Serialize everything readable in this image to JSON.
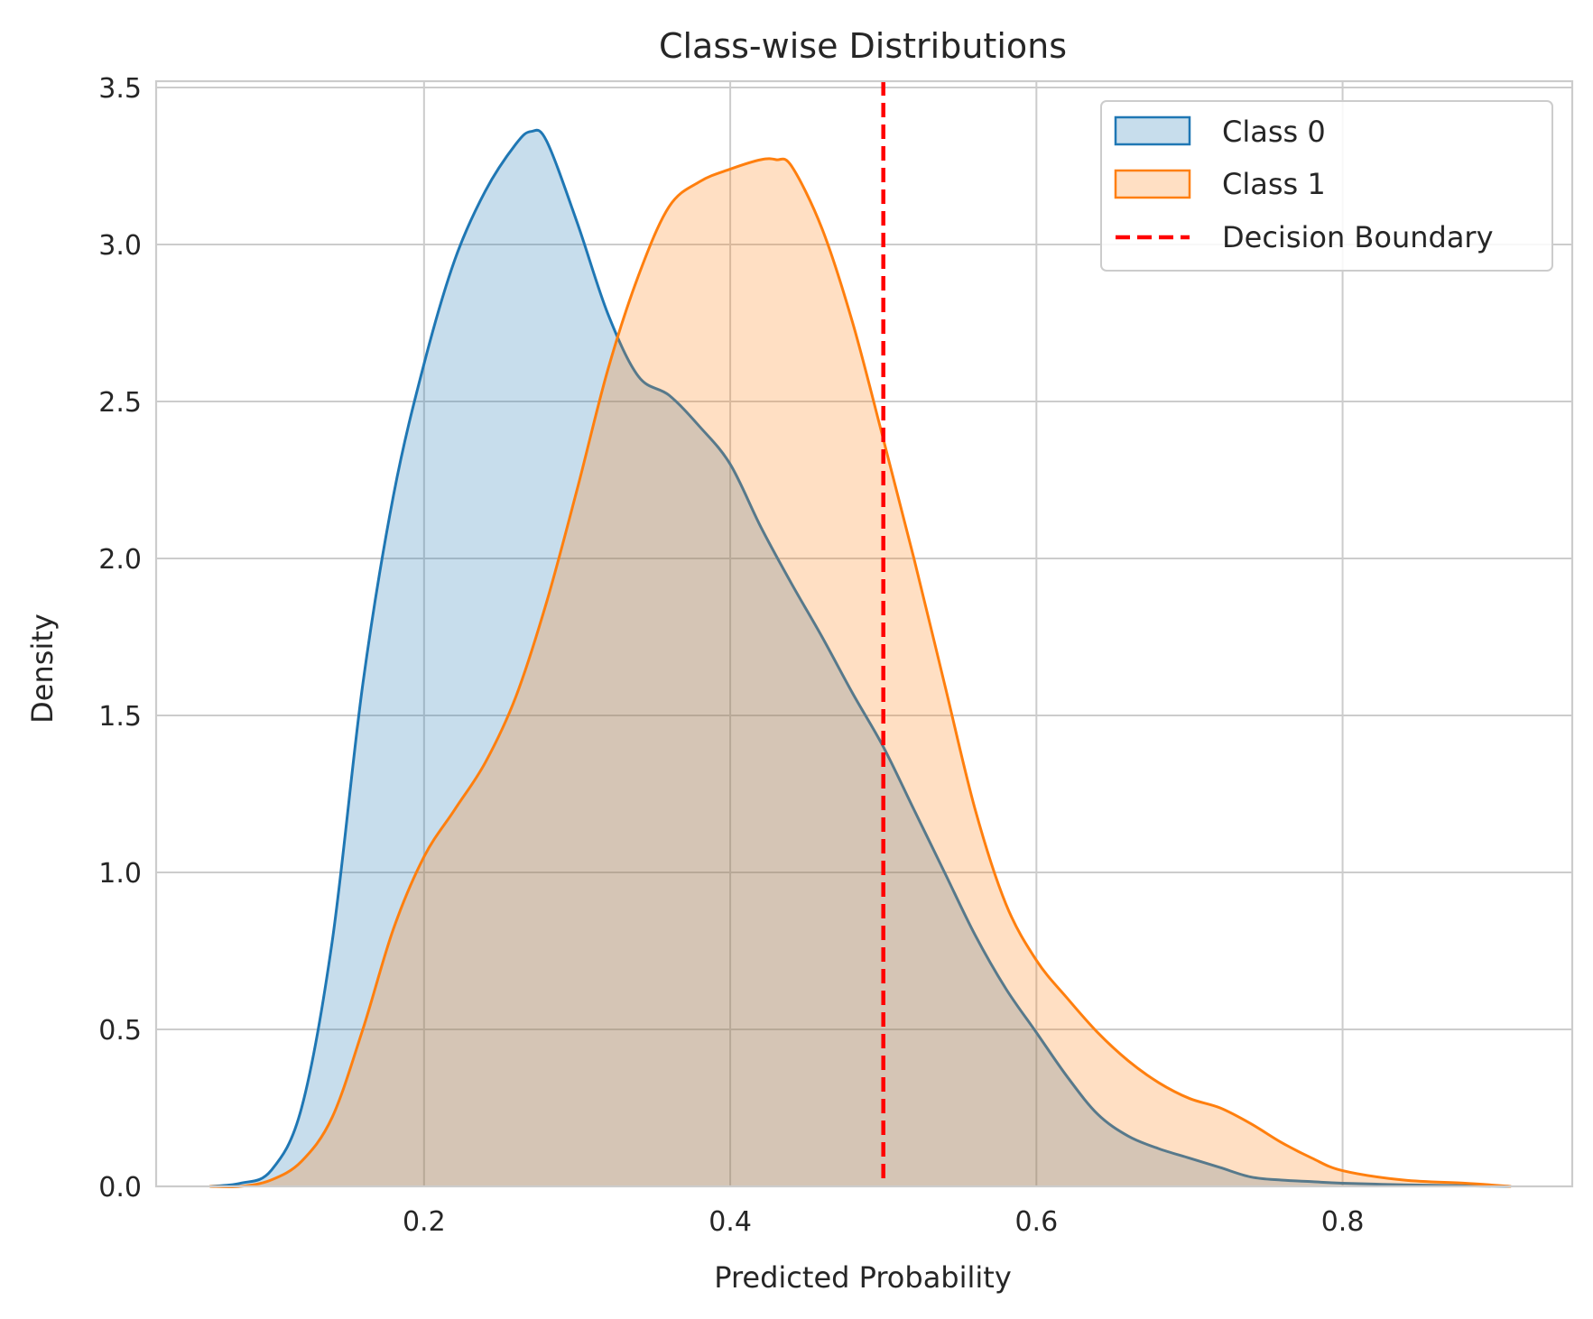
{
  "chart_data": {
    "type": "area",
    "title": "Class-wise Distributions",
    "xlabel": "Predicted Probability",
    "ylabel": "Density",
    "xlim": [
      0.025,
      0.95
    ],
    "ylim": [
      0,
      3.52
    ],
    "xticks": [
      0.2,
      0.4,
      0.6,
      0.8
    ],
    "xtick_labels": [
      "0.2",
      "0.4",
      "0.6",
      "0.8"
    ],
    "yticks": [
      0.0,
      0.5,
      1.0,
      1.5,
      2.0,
      2.5,
      3.0,
      3.5
    ],
    "ytick_labels": [
      "0.0",
      "0.5",
      "1.0",
      "1.5",
      "2.0",
      "2.5",
      "3.0",
      "3.5"
    ],
    "grid": true,
    "legend_position": "top-right",
    "series": [
      {
        "name": "Class 0",
        "color": "#1f77b4",
        "fill": "rgba(31,119,180,0.25)",
        "x": [
          0.06,
          0.08,
          0.1,
          0.12,
          0.14,
          0.16,
          0.18,
          0.2,
          0.22,
          0.24,
          0.26,
          0.27,
          0.28,
          0.3,
          0.32,
          0.34,
          0.36,
          0.38,
          0.4,
          0.42,
          0.44,
          0.46,
          0.48,
          0.5,
          0.52,
          0.54,
          0.56,
          0.58,
          0.6,
          0.62,
          0.64,
          0.66,
          0.68,
          0.7,
          0.72,
          0.74,
          0.76,
          0.78,
          0.8,
          0.84,
          0.88,
          0.91
        ],
        "values": [
          0.0,
          0.01,
          0.05,
          0.25,
          0.78,
          1.6,
          2.2,
          2.62,
          2.95,
          3.17,
          3.32,
          3.36,
          3.33,
          3.07,
          2.78,
          2.58,
          2.52,
          2.42,
          2.3,
          2.1,
          1.92,
          1.75,
          1.57,
          1.4,
          1.2,
          1.0,
          0.8,
          0.63,
          0.49,
          0.35,
          0.23,
          0.16,
          0.12,
          0.09,
          0.06,
          0.03,
          0.02,
          0.015,
          0.01,
          0.005,
          0.002,
          0.0
        ]
      },
      {
        "name": "Class 1",
        "color": "#ff7f0e",
        "fill": "rgba(255,127,14,0.25)",
        "x": [
          0.06,
          0.08,
          0.1,
          0.12,
          0.14,
          0.16,
          0.18,
          0.2,
          0.22,
          0.24,
          0.26,
          0.28,
          0.3,
          0.32,
          0.34,
          0.36,
          0.38,
          0.4,
          0.42,
          0.43,
          0.44,
          0.46,
          0.48,
          0.5,
          0.52,
          0.54,
          0.56,
          0.58,
          0.6,
          0.62,
          0.64,
          0.66,
          0.68,
          0.7,
          0.72,
          0.74,
          0.76,
          0.78,
          0.8,
          0.84,
          0.88,
          0.91
        ],
        "values": [
          0.0,
          0.0,
          0.02,
          0.08,
          0.22,
          0.5,
          0.82,
          1.05,
          1.2,
          1.35,
          1.56,
          1.86,
          2.22,
          2.6,
          2.9,
          3.12,
          3.2,
          3.24,
          3.27,
          3.27,
          3.25,
          3.05,
          2.75,
          2.38,
          2.0,
          1.6,
          1.2,
          0.9,
          0.72,
          0.6,
          0.49,
          0.4,
          0.33,
          0.28,
          0.25,
          0.2,
          0.14,
          0.09,
          0.05,
          0.02,
          0.01,
          0.0
        ]
      }
    ],
    "reference_lines": [
      {
        "name": "Decision Boundary",
        "x": 0.5,
        "color": "#ff0000",
        "style": "dashed"
      }
    ]
  }
}
